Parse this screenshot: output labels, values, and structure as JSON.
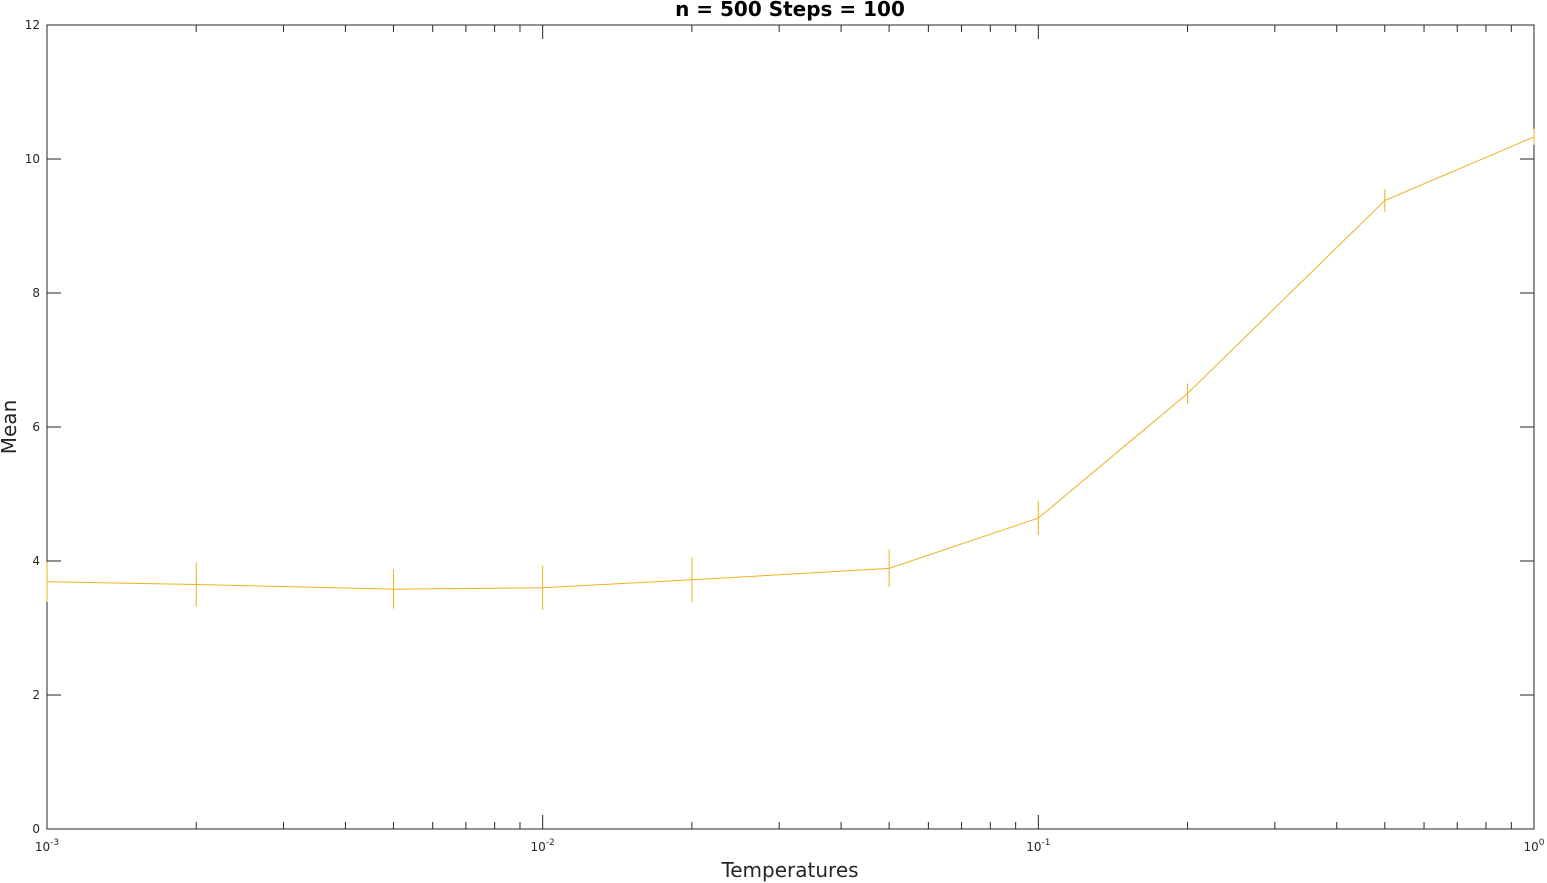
{
  "chart_data": {
    "type": "line",
    "title": "n = 500   Steps = 100",
    "xlabel": "Temperatures",
    "ylabel": "Mean",
    "x_scale": "log",
    "xlim": [
      0.001,
      1
    ],
    "ylim": [
      0,
      12
    ],
    "grid": false,
    "x_ticks": [
      {
        "value": 0.001,
        "base": "10",
        "exp": "-3"
      },
      {
        "value": 0.01,
        "base": "10",
        "exp": "-2"
      },
      {
        "value": 0.1,
        "base": "10",
        "exp": "-1"
      },
      {
        "value": 1,
        "base": "10",
        "exp": "0"
      }
    ],
    "y_ticks": [
      {
        "value": 0,
        "label": "0"
      },
      {
        "value": 2,
        "label": "2"
      },
      {
        "value": 4,
        "label": "4"
      },
      {
        "value": 6,
        "label": "6"
      },
      {
        "value": 8,
        "label": "8"
      },
      {
        "value": 10,
        "label": "10"
      },
      {
        "value": 12,
        "label": "12"
      }
    ],
    "series": [
      {
        "color": "#EDB120",
        "points": [
          {
            "x": 0.001,
            "y": 3.69,
            "err": 0.3
          },
          {
            "x": 0.002,
            "y": 3.65,
            "err": 0.33
          },
          {
            "x": 0.005,
            "y": 3.58,
            "err": 0.29
          },
          {
            "x": 0.01,
            "y": 3.6,
            "err": 0.33
          },
          {
            "x": 0.02,
            "y": 3.72,
            "err": 0.33
          },
          {
            "x": 0.05,
            "y": 3.89,
            "err": 0.28
          },
          {
            "x": 0.1,
            "y": 4.64,
            "err": 0.25
          },
          {
            "x": 0.2,
            "y": 6.5,
            "err": 0.15
          },
          {
            "x": 0.5,
            "y": 9.38,
            "err": 0.17
          },
          {
            "x": 1,
            "y": 10.33,
            "err": 0.12
          }
        ]
      }
    ]
  }
}
